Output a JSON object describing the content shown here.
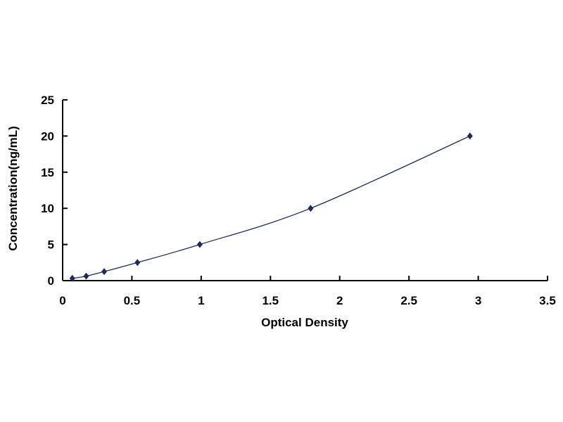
{
  "chart_data": {
    "type": "line",
    "title": "",
    "xlabel": "Optical Density",
    "ylabel": "Concentration(ng/mL)",
    "xlim": [
      0,
      3.5
    ],
    "ylim": [
      0,
      25
    ],
    "xticks": [
      "0",
      "0.5",
      "1",
      "1.5",
      "2",
      "2.5",
      "3",
      "3.5"
    ],
    "yticks": [
      "0",
      "5",
      "10",
      "15",
      "20",
      "25"
    ],
    "grid": false,
    "series": [
      {
        "x": [
          0.07,
          0.17,
          0.3,
          0.54,
          0.99,
          1.79,
          2.94
        ],
        "y": [
          0.312,
          0.625,
          1.25,
          2.5,
          5,
          10,
          20
        ],
        "color": "#1f2a5c",
        "marker": "diamond"
      }
    ]
  }
}
